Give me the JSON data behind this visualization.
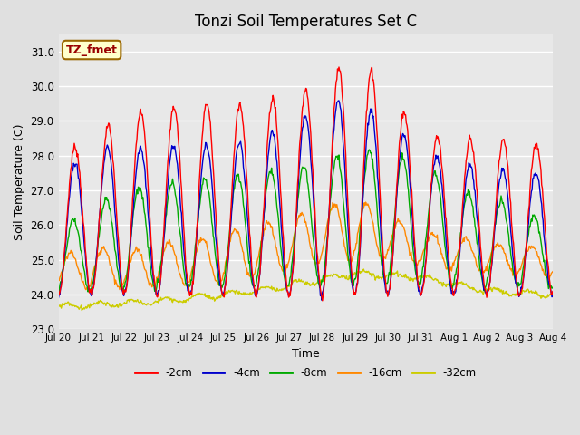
{
  "title": "Tonzi Soil Temperatures Set C",
  "xlabel": "Time",
  "ylabel": "Soil Temperature (C)",
  "ylim": [
    23.0,
    31.5
  ],
  "yticks": [
    23.0,
    24.0,
    25.0,
    26.0,
    27.0,
    28.0,
    29.0,
    30.0,
    31.0
  ],
  "bg_color": "#e0e0e0",
  "plot_bg_color": "#e8e8e8",
  "series_colors": {
    "-2cm": "#ff0000",
    "-4cm": "#0000cc",
    "-8cm": "#00aa00",
    "-16cm": "#ff8800",
    "-32cm": "#cccc00"
  },
  "annotation_text": "TZ_fmet",
  "annotation_color": "#990000",
  "annotation_bg": "#ffffcc",
  "annotation_border": "#996600",
  "n_points": 720,
  "end_day": 15.0,
  "xtick_positions": [
    0,
    1,
    2,
    3,
    4,
    5,
    6,
    7,
    8,
    9,
    10,
    11,
    12,
    13,
    14,
    15
  ],
  "xtick_labels": [
    "Jul 20",
    "Jul 21",
    "Jul 22",
    "Jul 23",
    "Jul 24",
    "Jul 25",
    "Jul 26",
    "Jul 27",
    "Jul 28",
    "Jul 29",
    "Jul 30",
    "Jul 31",
    "Aug 1",
    "Aug 2",
    "Aug 3",
    "Aug 4"
  ]
}
